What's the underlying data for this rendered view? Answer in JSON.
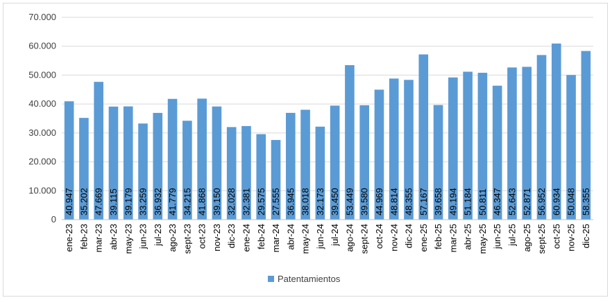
{
  "chart_data": {
    "type": "bar",
    "title": "",
    "xlabel": "",
    "ylabel": "",
    "ylim": [
      0,
      70000
    ],
    "ytick_values": [
      0,
      10000,
      20000,
      30000,
      40000,
      50000,
      60000,
      70000
    ],
    "ytick_labels": [
      "0",
      "10.000",
      "20.000",
      "30.000",
      "40.000",
      "50.000",
      "60.000",
      "70.000"
    ],
    "grid": true,
    "legend_position": "bottom",
    "categories": [
      "ene-23",
      "feb-23",
      "mar-23",
      "abr-23",
      "may-23",
      "jun-23",
      "jul-23",
      "ago-23",
      "sept-23",
      "oct-23",
      "nov-23",
      "dic-23",
      "ene-24",
      "feb-24",
      "mar-24",
      "abr-24",
      "may-24",
      "jun-24",
      "jul-24",
      "ago-24",
      "sept-24",
      "oct-24",
      "nov-24",
      "dic-24",
      "ene-25",
      "feb-25",
      "mar-25",
      "abr-25",
      "may-25",
      "jun-25",
      "jul-25",
      "ago-25",
      "sept-25",
      "oct-25",
      "nov-25",
      "dic-25"
    ],
    "series": [
      {
        "name": "Patentamientos",
        "color": "#5b9bd5",
        "values": [
          40947,
          35202,
          47669,
          39115,
          39179,
          33259,
          36932,
          41779,
          34215,
          41868,
          39150,
          32028,
          32381,
          29575,
          27555,
          36945,
          38018,
          32173,
          39450,
          53449,
          39580,
          44969,
          48814,
          48355,
          57167,
          39658,
          49194,
          51184,
          50811,
          46347,
          52643,
          52871,
          56952,
          60934,
          50048,
          58355
        ],
        "labels": [
          "40.947",
          "35.202",
          "47.669",
          "39.115",
          "39.179",
          "33.259",
          "36.932",
          "41.779",
          "34.215",
          "41.868",
          "39.150",
          "32.028",
          "32.381",
          "29.575",
          "27.555",
          "36.945",
          "38.018",
          "32.173",
          "39.450",
          "53.449",
          "39.580",
          "44.969",
          "48.814",
          "48.355",
          "57.167",
          "39.658",
          "49.194",
          "51.184",
          "50.811",
          "46.347",
          "52.643",
          "52.871",
          "56.952",
          "60.934",
          "50.048",
          "58.355"
        ]
      }
    ]
  }
}
